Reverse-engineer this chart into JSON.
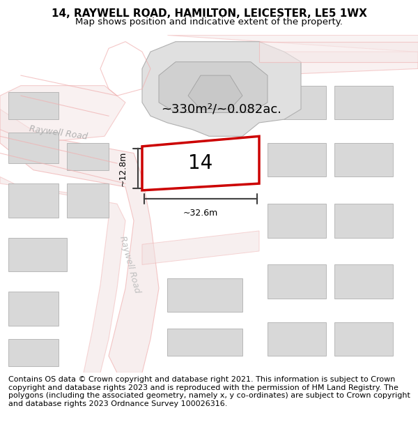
{
  "title_line1": "14, RAYWELL ROAD, HAMILTON, LEICESTER, LE5 1WX",
  "title_line2": "Map shows position and indicative extent of the property.",
  "footer_text": "Contains OS data © Crown copyright and database right 2021. This information is subject to Crown copyright and database rights 2023 and is reproduced with the permission of HM Land Registry. The polygons (including the associated geometry, namely x, y co-ordinates) are subject to Crown copyright and database rights 2023 Ordnance Survey 100026316.",
  "area_label": "~330m²/~0.082ac.",
  "number_label": "14",
  "width_label": "~32.6m",
  "height_label": "~12.8m",
  "road_label_h": "Raywell Road",
  "road_label_v": "Raywell Road",
  "bg_color": "#ffffff",
  "map_bg": "#f7f7f7",
  "road_fill": "#e8e8e8",
  "building_fill": "#d8d8d8",
  "highlight_fill": "#ffffff",
  "highlight_stroke": "#cc0000",
  "road_outline_color": "#f0b0b0",
  "dim_line_color": "#404040",
  "title_fontsize": 11,
  "subtitle_fontsize": 9.5,
  "footer_fontsize": 8.0
}
